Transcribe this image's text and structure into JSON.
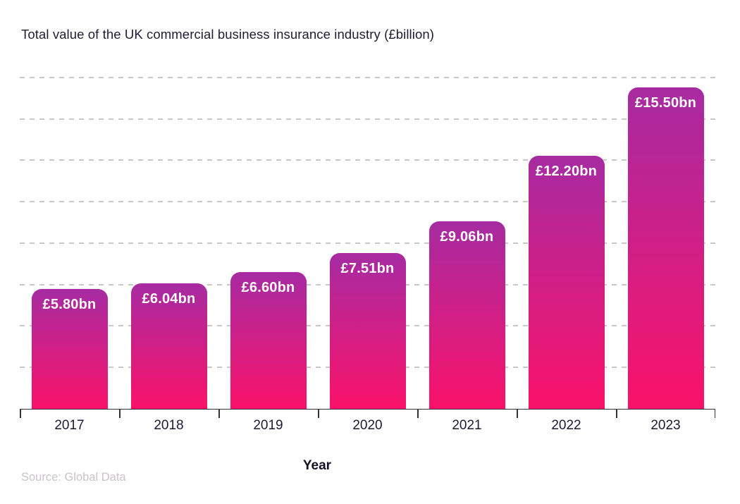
{
  "chart": {
    "title": "Total value of the UK commercial business insurance industry (£billion)",
    "x_axis_title": "Year",
    "source": "Source: Global Data",
    "colors": {
      "background": "#FFFFFF",
      "bar_gradient_top": "#A72BA2",
      "bar_gradient_bottom": "#FA1269",
      "grid": "#C8C8C8",
      "axis": "#35323F",
      "title_text": "#1F1B36",
      "tick_text": "#1D1A33",
      "bar_label_text": "#FFFFFF",
      "source_text": "#CBC2CA"
    }
  },
  "chart_data": {
    "type": "bar",
    "title": "Total value of the UK commercial business insurance industry (£billion)",
    "categories": [
      "2017",
      "2018",
      "2019",
      "2020",
      "2021",
      "2022",
      "2023"
    ],
    "values": [
      5.8,
      6.04,
      6.6,
      7.51,
      9.06,
      12.2,
      15.5
    ],
    "bar_labels": [
      "£5.80bn",
      "£6.04bn",
      "£6.60bn",
      "£7.51bn",
      "£9.06bn",
      "£12.20bn",
      "£15.50bn"
    ],
    "xlabel": "Year",
    "ylabel": "",
    "ylim": [
      0,
      16.5
    ],
    "gridlines_at": [
      2,
      4,
      6,
      8,
      10,
      12,
      14,
      16
    ],
    "grid": true,
    "legend": false,
    "bar_label_position": "inside-top",
    "source": "Source: Global Data"
  }
}
